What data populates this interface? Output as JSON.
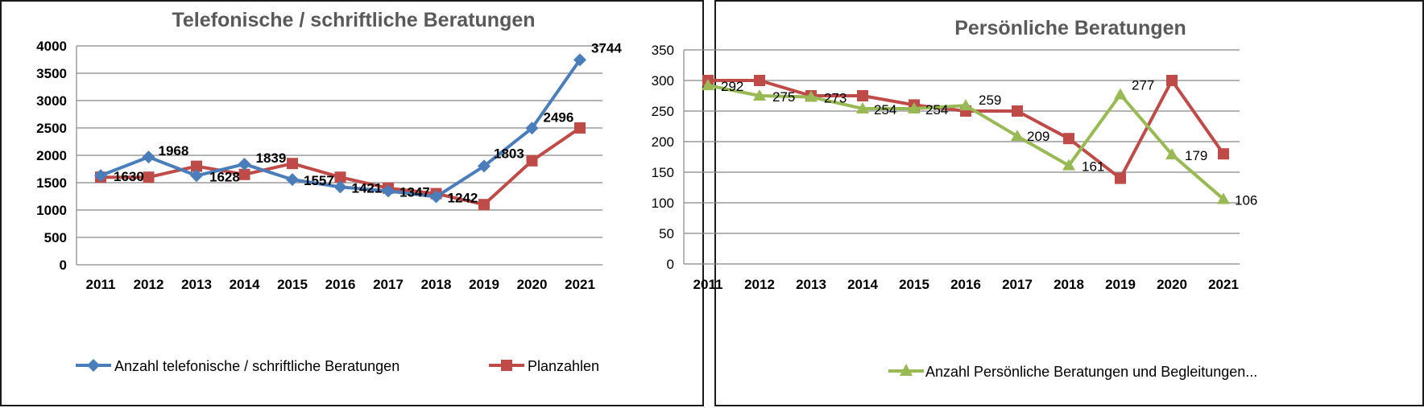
{
  "chart_data": [
    {
      "type": "line",
      "title": "Telefonische / schriftliche Beratungen",
      "categories": [
        "2011",
        "2012",
        "2013",
        "2014",
        "2015",
        "2016",
        "2017",
        "2018",
        "2019",
        "2020",
        "2021"
      ],
      "ylim": [
        0,
        4000
      ],
      "yticks": [
        "0",
        "500",
        "1000",
        "1500",
        "2000",
        "2500",
        "3000",
        "3500",
        "4000"
      ],
      "grid": true,
      "legend_position": "bottom",
      "series": [
        {
          "name": "Anzahl telefonische / schriftliche Beratungen",
          "color": "#4a7ebb",
          "marker": "diamond",
          "values": [
            1630,
            1968,
            1628,
            1839,
            1557,
            1421,
            1347,
            1242,
            1803,
            2496,
            3744
          ],
          "labels": [
            "1630",
            "1968",
            "1628",
            "1839",
            "1557",
            "1421",
            "1347",
            "1242",
            "1803",
            "2496",
            "3744"
          ]
        },
        {
          "name": "Planzahlen",
          "color": "#be4b48",
          "marker": "square",
          "values": [
            1600,
            1600,
            1800,
            1650,
            1850,
            1600,
            1400,
            1300,
            1100,
            1900,
            2500
          ]
        }
      ]
    },
    {
      "type": "line",
      "title": "Persönliche Beratungen",
      "categories": [
        "2011",
        "2012",
        "2013",
        "2014",
        "2015",
        "2016",
        "2017",
        "2018",
        "2019",
        "2020",
        "2021"
      ],
      "ylim": [
        0,
        350
      ],
      "yticks": [
        "0",
        "50",
        "100",
        "150",
        "200",
        "250",
        "300",
        "350"
      ],
      "grid": true,
      "legend_position": "bottom",
      "series": [
        {
          "name": "Anzahl Persönliche Beratungen und Begleitungen...",
          "color": "#98b954",
          "marker": "triangle",
          "values": [
            292,
            275,
            273,
            254,
            254,
            259,
            209,
            161,
            277,
            179,
            106
          ],
          "labels": [
            "292",
            "275",
            "273",
            "254",
            "254",
            "259",
            "209",
            "161",
            "277",
            "179",
            "106"
          ]
        },
        {
          "name": "",
          "color": "#be4b48",
          "marker": "square",
          "values": [
            300,
            300,
            275,
            275,
            260,
            250,
            250,
            205,
            140,
            300,
            180
          ]
        }
      ]
    }
  ]
}
